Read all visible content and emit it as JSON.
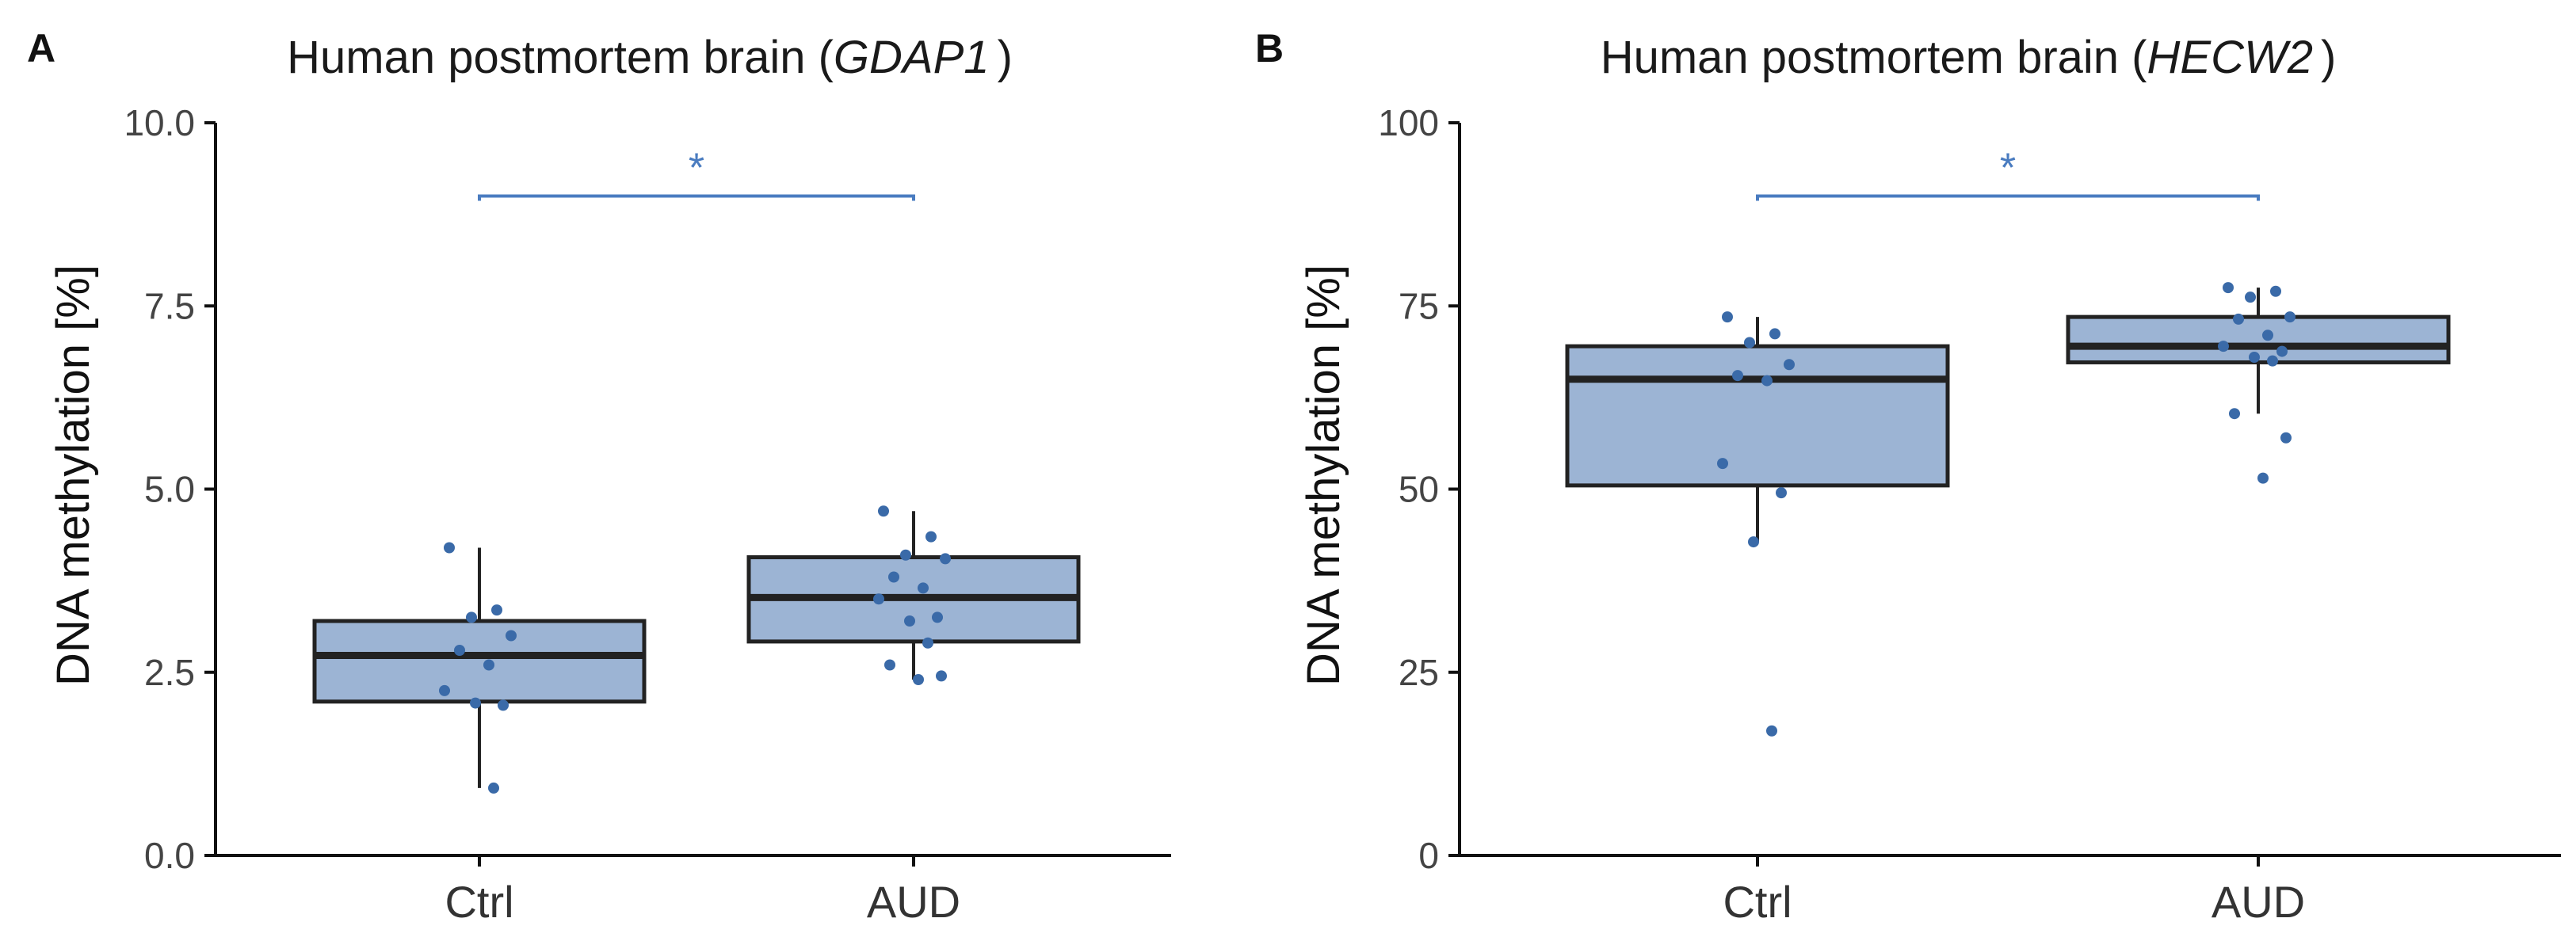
{
  "colors": {
    "box_fill": "#9cb4d4",
    "box_stroke": "#222222",
    "point": "#3a6aa8",
    "sig": "#4a7cc0"
  },
  "chart_data": [
    {
      "panel": "A",
      "type": "box",
      "title": "Human postmortem brain (",
      "title_gene": "GDAP1",
      "title_end": ")",
      "xlabel": "",
      "ylabel": "DNA methylation [%]",
      "ylim": [
        0,
        10
      ],
      "yticks": [
        0,
        2.5,
        5,
        7.5,
        10
      ],
      "ytick_labels": [
        "0.0",
        "2.5",
        "5.0",
        "7.5",
        "10.0"
      ],
      "categories": [
        "Ctrl",
        "AUD"
      ],
      "boxes": [
        {
          "category": "Ctrl",
          "q1": 2.1,
          "median": 2.73,
          "q3": 3.2,
          "whisker_low": 0.92,
          "whisker_high": 4.2,
          "points": [
            4.2,
            3.35,
            3.25,
            3.0,
            2.8,
            2.6,
            2.25,
            2.05,
            2.08,
            0.92
          ]
        },
        {
          "category": "AUD",
          "q1": 2.92,
          "median": 3.52,
          "q3": 4.07,
          "whisker_low": 2.4,
          "whisker_high": 4.7,
          "points": [
            4.7,
            4.35,
            4.1,
            4.05,
            3.8,
            3.65,
            3.5,
            3.25,
            3.2,
            2.9,
            2.6,
            2.45,
            2.4
          ]
        }
      ],
      "significance": {
        "label": "*",
        "y": 9.0,
        "from": "Ctrl",
        "to": "AUD"
      }
    },
    {
      "panel": "B",
      "type": "box",
      "title": "Human postmortem brain (",
      "title_gene": "HECW2",
      "title_end": ")",
      "xlabel": "",
      "ylabel": "DNA methylation [%]",
      "ylim": [
        0,
        100
      ],
      "yticks": [
        0,
        25,
        50,
        75,
        100
      ],
      "ytick_labels": [
        "0",
        "25",
        "50",
        "75",
        "100"
      ],
      "categories": [
        "Ctrl",
        "AUD"
      ],
      "boxes": [
        {
          "category": "Ctrl",
          "q1": 50.5,
          "median": 65,
          "q3": 69.5,
          "whisker_low": 42.8,
          "whisker_high": 73.5,
          "points": [
            73.5,
            71.2,
            70.0,
            67.0,
            65.5,
            64.8,
            53.5,
            49.5,
            42.8,
            17.0
          ]
        },
        {
          "category": "AUD",
          "q1": 67.3,
          "median": 69.5,
          "q3": 73.5,
          "whisker_low": 60.3,
          "whisker_high": 77.5,
          "points": [
            77.5,
            77.0,
            76.2,
            73.5,
            73.2,
            71.0,
            69.5,
            68.8,
            68.0,
            67.5,
            60.3,
            57.0,
            51.5
          ]
        }
      ],
      "significance": {
        "label": "*",
        "y": 90,
        "from": "Ctrl",
        "to": "AUD"
      }
    }
  ]
}
